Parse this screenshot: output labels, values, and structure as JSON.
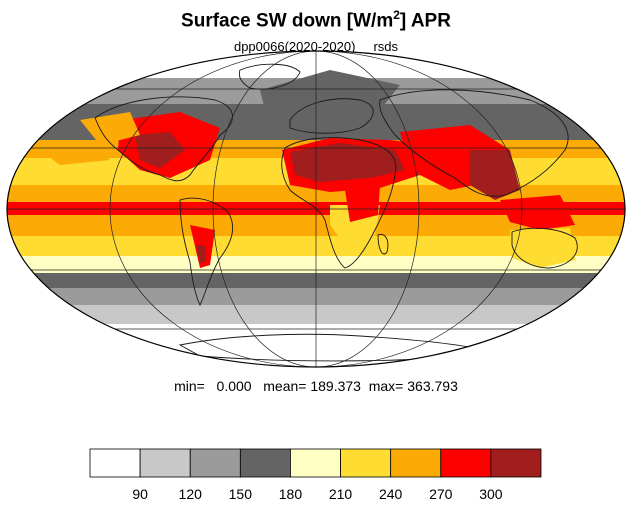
{
  "title": {
    "main": "Surface SW down [W/m",
    "sup": "2",
    "end": "]  APR"
  },
  "subtitle": "dpp0066(2020-2020)     rsds",
  "stats": {
    "min_label": "min=",
    "min": "0.000",
    "mean_label": "mean=",
    "mean": "189.373",
    "max_label": "max=",
    "max": "363.793"
  },
  "legend": {
    "colors": [
      "#ffffff",
      "#c8c8c8",
      "#9b9b9b",
      "#646464",
      "#ffffc4",
      "#fedc32",
      "#fcaa05",
      "#fd0000",
      "#a01e1e"
    ],
    "labels": [
      "90",
      "120",
      "150",
      "180",
      "210",
      "240",
      "270",
      "300"
    ]
  },
  "map": {
    "projection": "mollweide",
    "variable": "rsds",
    "month": "APR"
  }
}
